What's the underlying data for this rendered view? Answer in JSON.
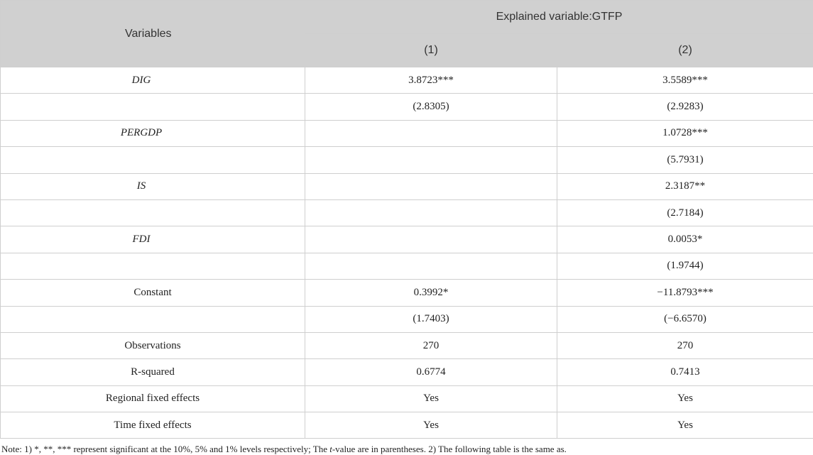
{
  "table": {
    "header": {
      "variables": "Variables",
      "explained": "Explained variable:GTFP",
      "col1": "(1)",
      "col2": "(2)"
    },
    "rows": [
      {
        "name": "DIG",
        "italic": true,
        "c1": "3.8723***",
        "c2": "3.5589***"
      },
      {
        "name": "",
        "italic": false,
        "c1": "(2.8305)",
        "c2": "(2.9283)"
      },
      {
        "name": "PERGDP",
        "italic": true,
        "c1": "",
        "c2": "1.0728***"
      },
      {
        "name": "",
        "italic": false,
        "c1": "",
        "c2": "(5.7931)"
      },
      {
        "name": "IS",
        "italic": true,
        "c1": "",
        "c2": "2.3187**"
      },
      {
        "name": "",
        "italic": false,
        "c1": "",
        "c2": "(2.7184)"
      },
      {
        "name": "FDI",
        "italic": true,
        "c1": "",
        "c2": "0.0053*"
      },
      {
        "name": "",
        "italic": false,
        "c1": "",
        "c2": "(1.9744)"
      },
      {
        "name": "Constant",
        "italic": false,
        "c1": "0.3992*",
        "c2": "−11.8793***"
      },
      {
        "name": "",
        "italic": false,
        "c1": "(1.7403)",
        "c2": "(−6.6570)"
      },
      {
        "name": "Observations",
        "italic": false,
        "c1": "270",
        "c2": "270"
      },
      {
        "name": "R-squared",
        "italic": false,
        "c1": "0.6774",
        "c2": "0.7413"
      },
      {
        "name": "Regional fixed effects",
        "italic": false,
        "c1": "Yes",
        "c2": "Yes"
      },
      {
        "name": "Time fixed effects",
        "italic": false,
        "c1": "Yes",
        "c2": "Yes"
      }
    ]
  },
  "note": {
    "prefix": "Note: 1) *, **, *** represent significant at the 10%, 5% and 1% levels respectively; The ",
    "italic": "t",
    "suffix": "-value are in parentheses. 2) The following table is the same as."
  }
}
